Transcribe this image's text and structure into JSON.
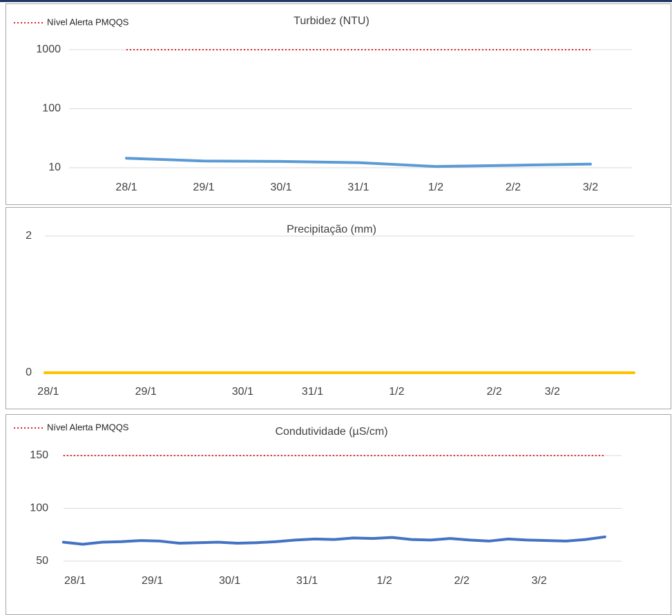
{
  "chart_data": [
    {
      "type": "line",
      "title": "Turbidez (NTU)",
      "log_scale": true,
      "grid": true,
      "legend": "top-left",
      "categories": [
        "28/1",
        "29/1",
        "30/1",
        "31/1",
        "1/2",
        "2/2",
        "3/2"
      ],
      "ylim": [
        10,
        1000
      ],
      "yticks": [
        10,
        100,
        1000
      ],
      "series": [
        {
          "name": "Nível Alerta PMQQS",
          "color": "#e02020",
          "line_style": "dotted",
          "values": [
            1000,
            1000,
            1000,
            1000,
            1000,
            1000,
            1000
          ]
        },
        {
          "color": "#5b9bd5",
          "values": [
            14.5,
            13,
            12.8,
            12.2,
            10.5,
            11,
            11.5
          ]
        }
      ]
    },
    {
      "type": "line",
      "title": "Precipitação (mm)",
      "grid": true,
      "xlim": [
        0,
        7
      ],
      "xticks": [
        {
          "value": 0.04,
          "label": "28/1"
        },
        {
          "value": 1.2,
          "label": "29/1"
        },
        {
          "value": 2.35,
          "label": "30/1"
        },
        {
          "value": 3.18,
          "label": "31/1"
        },
        {
          "value": 4.18,
          "label": "1/2"
        },
        {
          "value": 5.34,
          "label": "2/2"
        },
        {
          "value": 6.03,
          "label": "3/2"
        }
      ],
      "ylim": [
        0,
        2
      ],
      "yticks": [
        0,
        2
      ],
      "series": [
        {
          "color": "#ffc000",
          "x": [
            0,
            7
          ],
          "values": [
            0,
            0
          ]
        }
      ]
    },
    {
      "type": "line",
      "title": "Condutividade (µS/cm)",
      "grid": true,
      "legend": "top-left",
      "xlim": [
        -0.3,
        7.2
      ],
      "xticks": [
        {
          "value": 0,
          "label": "28/1"
        },
        {
          "value": 1,
          "label": "29/1"
        },
        {
          "value": 2,
          "label": "30/1"
        },
        {
          "value": 3,
          "label": "31/1"
        },
        {
          "value": 4,
          "label": "1/2"
        },
        {
          "value": 5,
          "label": "2/2"
        },
        {
          "value": 6,
          "label": "3/2"
        }
      ],
      "ylim": [
        50,
        150
      ],
      "yticks": [
        50,
        100,
        150
      ],
      "series": [
        {
          "name": "Nível Alerta PMQQS",
          "color": "#e02020",
          "line_style": "dotted",
          "x": [
            -0.15,
            6.85
          ],
          "values": [
            150,
            150
          ]
        },
        {
          "color": "#4472c4",
          "x": [
            -0.15,
            0.1,
            0.35,
            0.6,
            0.85,
            1.1,
            1.35,
            1.6,
            1.85,
            2.1,
            2.35,
            2.6,
            2.85,
            3.1,
            3.35,
            3.6,
            3.85,
            4.1,
            4.35,
            4.6,
            4.85,
            5.1,
            5.35,
            5.6,
            5.85,
            6.1,
            6.35,
            6.6,
            6.85
          ],
          "values": [
            68,
            66,
            68,
            68.5,
            69.5,
            69,
            67,
            67.5,
            68,
            67,
            67.5,
            68.5,
            70,
            71,
            70.5,
            72,
            71.5,
            72.5,
            70.5,
            70,
            71.5,
            70,
            69,
            71,
            70,
            69.5,
            69,
            70.5,
            73
          ]
        }
      ]
    }
  ]
}
